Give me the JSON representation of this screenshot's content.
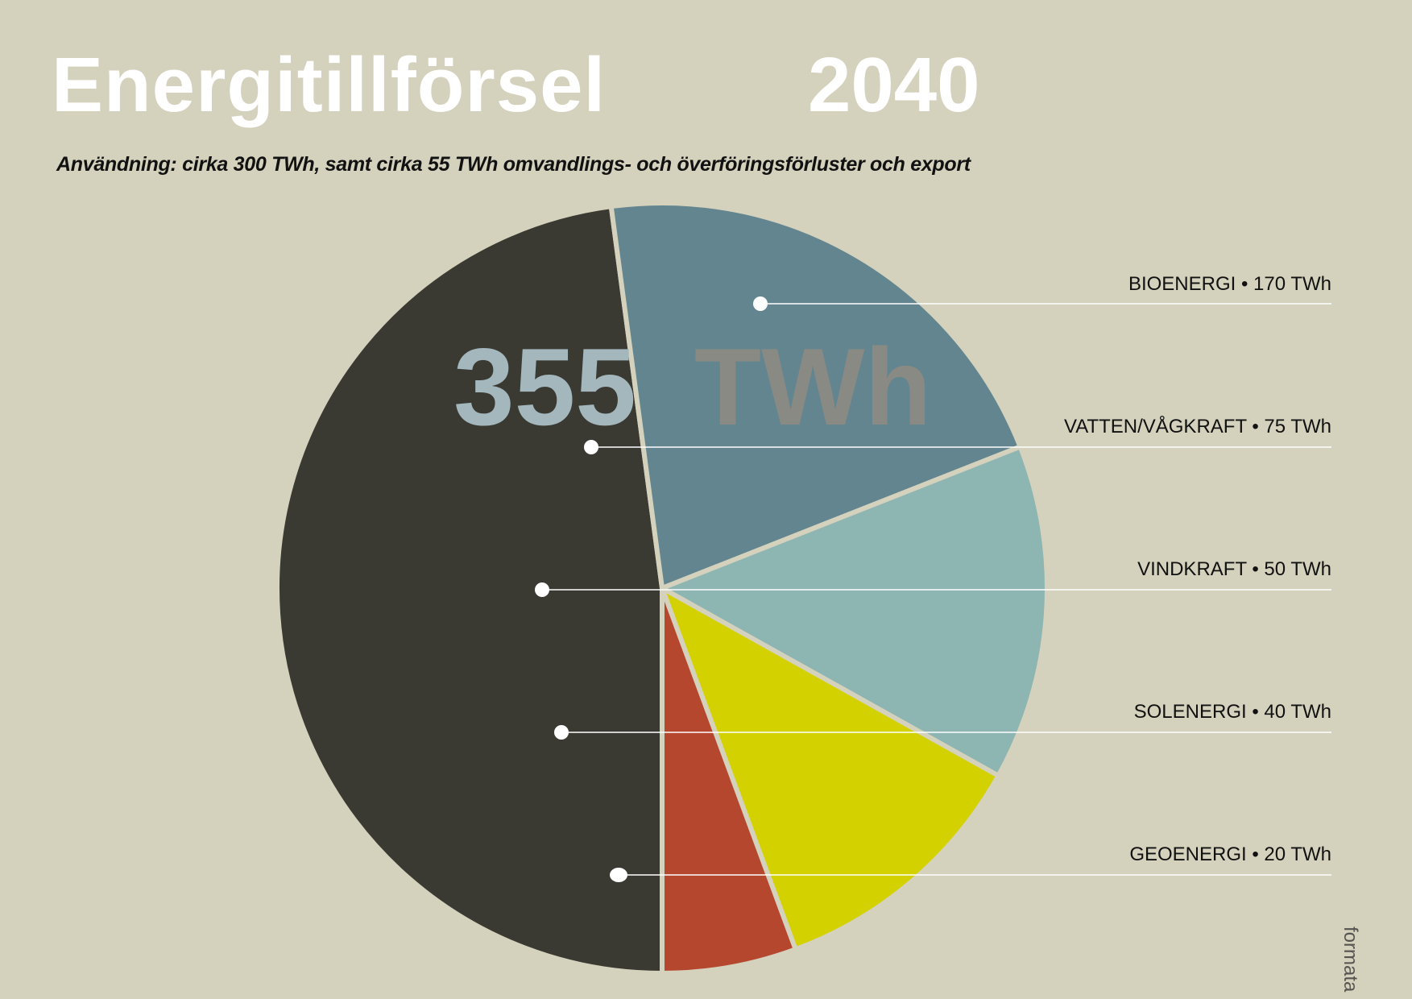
{
  "title": "Energitillförsel",
  "year": "2040",
  "subtitle": "Användning:  cirka 300 TWh, samt cirka 55 TWh omvandlings- och överföringsförluster och export",
  "credit": "formata",
  "colors": {
    "background": "#d4d1bd",
    "separator": "#d4d1bd",
    "leader_line": "#ffffff"
  },
  "chart_data": {
    "type": "pie",
    "title": "Energitillförsel",
    "unit": "TWh",
    "total": {
      "number": "355",
      "unit_label": "TWh",
      "number_color": "#a3b7bd",
      "unit_color": "#8a8a85"
    },
    "slices": [
      {
        "name": "BIOENERGI",
        "value": 170,
        "value_label": "170 TWh",
        "color": "#3a3a33"
      },
      {
        "name": "VATTEN/VÅGKRAFT",
        "value": 75,
        "value_label": "75 TWh",
        "color": "#62858f"
      },
      {
        "name": "VINDKRAFT",
        "value": 50,
        "value_label": "50 TWh",
        "color": "#8db5b2"
      },
      {
        "name": "SOLENERGI",
        "value": 40,
        "value_label": "40 TWh",
        "color": "#d4d100"
      },
      {
        "name": "GEOENERGI",
        "value": 20,
        "value_label": "20 TWh",
        "color": "#b5472f"
      }
    ],
    "legend": "right"
  }
}
